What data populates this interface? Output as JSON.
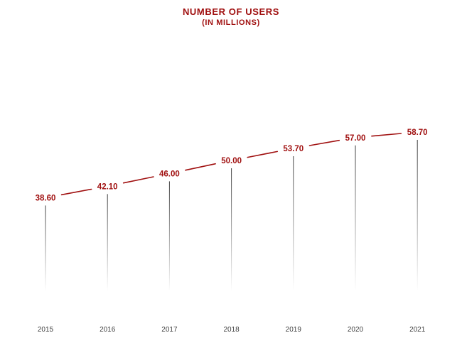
{
  "chart_data": {
    "type": "line",
    "title": "NUMBER  OF USERS",
    "subtitle": "(IN MILLIONS)",
    "categories": [
      "2015",
      "2016",
      "2017",
      "2018",
      "2019",
      "2020",
      "2021"
    ],
    "series": [
      {
        "values": [
          38.6,
          42.1,
          46.0,
          50.0,
          53.7,
          57.0,
          58.7
        ],
        "labels": [
          "38.60",
          "42.10",
          "46.00",
          "50.00",
          "53.70",
          "57.00",
          "58.70"
        ]
      }
    ],
    "ylim": [
      10,
      60
    ],
    "grid": false,
    "legend": "none",
    "colors": {
      "line": "#a01010",
      "labels": "#a01010",
      "drop_lines": "#333333",
      "ticks": "#404040"
    }
  }
}
